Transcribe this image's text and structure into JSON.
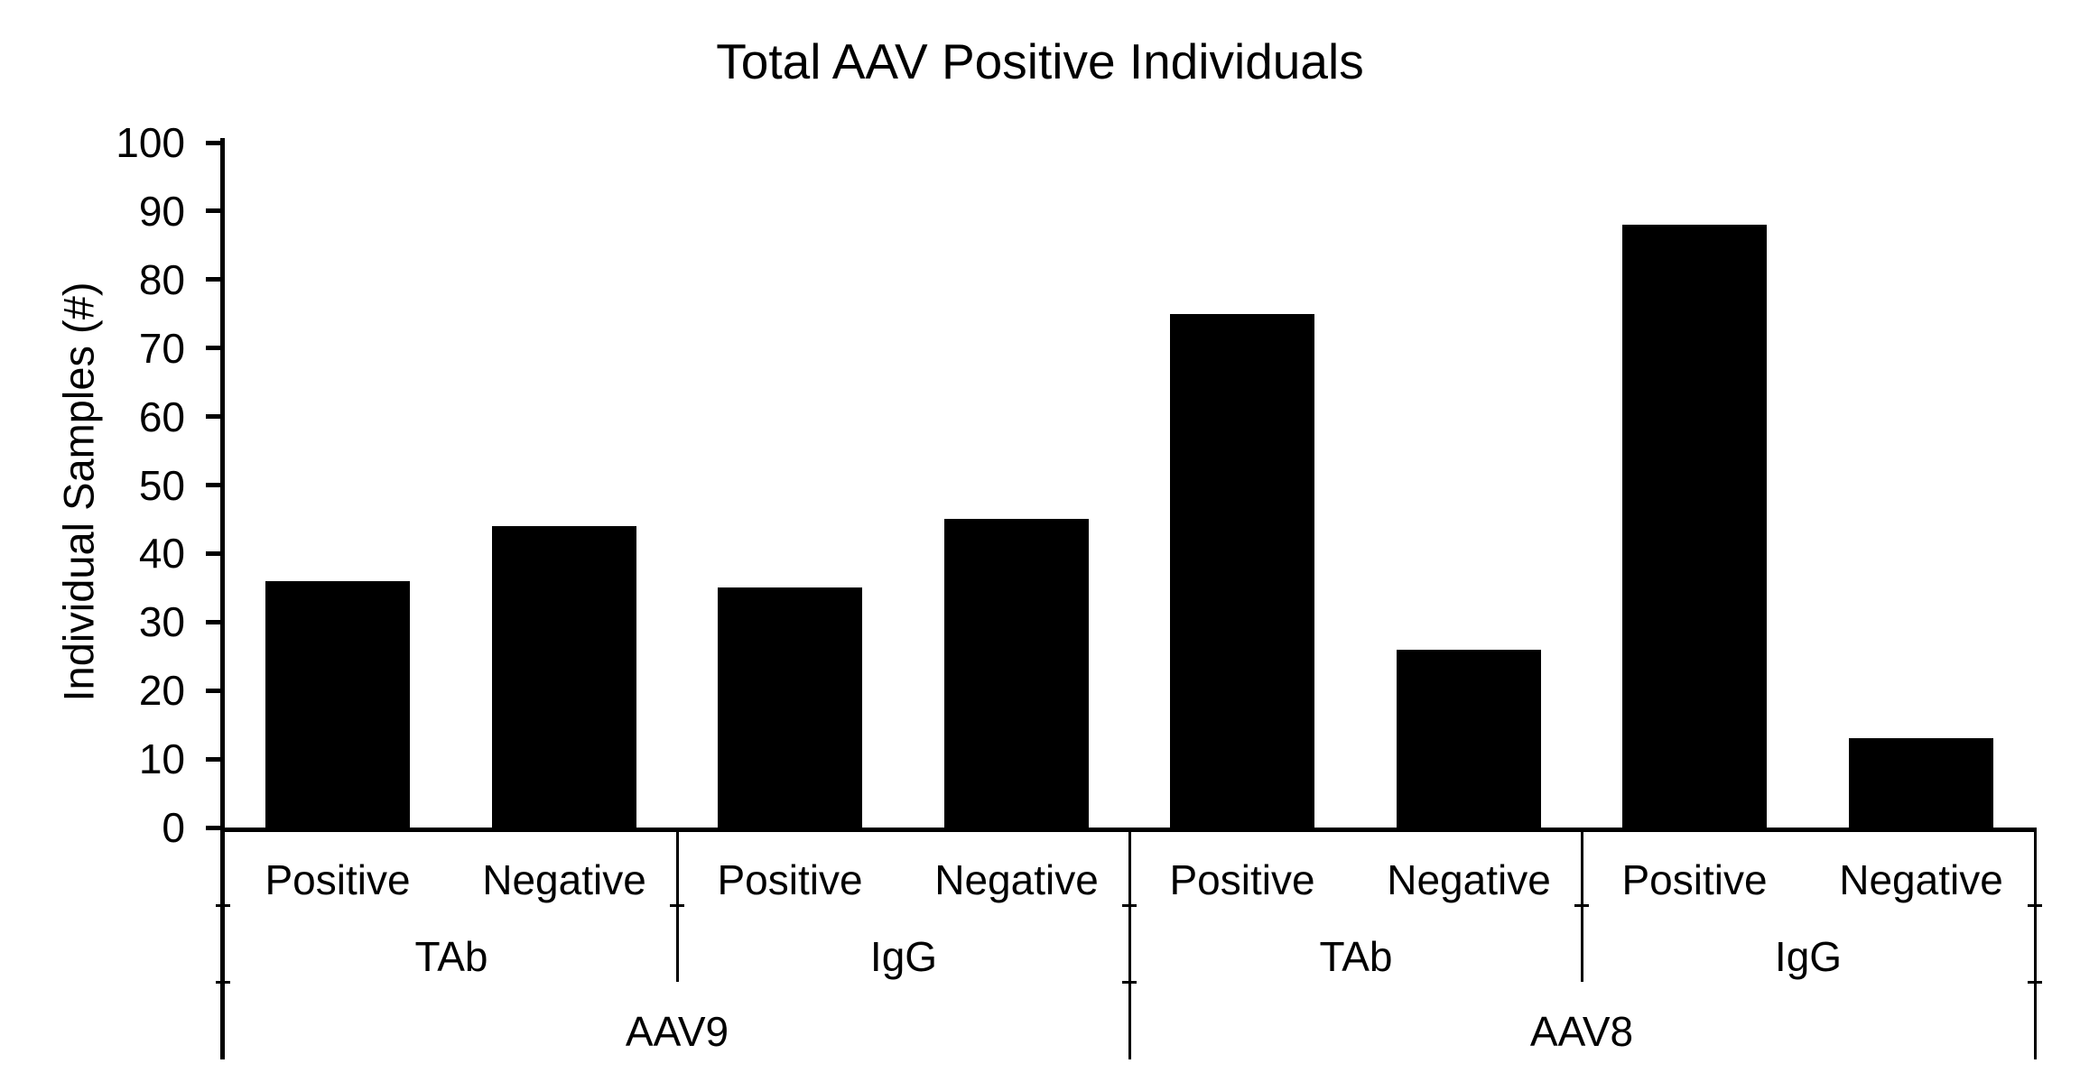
{
  "title": "Total AAV Positive Individuals",
  "chart_data": {
    "type": "bar",
    "title": "Total AAV Positive Individuals",
    "xlabel": "",
    "ylabel": "Individual Samples (#)",
    "ylim": [
      0,
      100
    ],
    "ytick_step": 10,
    "ytick_labels": [
      "0",
      "10",
      "20",
      "30",
      "40",
      "50",
      "60",
      "70",
      "80",
      "90",
      "100"
    ],
    "grid": false,
    "legend_position": "none",
    "bar_color": "#000000",
    "axis_color": "#000000",
    "background_color": "#ffffff",
    "categories": [
      "AAV9 TAb Positive",
      "AAV9 TAb Negative",
      "AAV9 IgG Positive",
      "AAV9 IgG Negative",
      "AAV8 TAb Positive",
      "AAV8 TAb Negative",
      "AAV8 IgG Positive",
      "AAV8 IgG Negative"
    ],
    "values": [
      36,
      44,
      35,
      45,
      75,
      26,
      88,
      13
    ],
    "groups": [
      {
        "label": "AAV9",
        "subgroups": [
          {
            "label": "TAb",
            "bars": [
              {
                "label": "Positive",
                "value": 36
              },
              {
                "label": "Negative",
                "value": 44
              }
            ]
          },
          {
            "label": "IgG",
            "bars": [
              {
                "label": "Positive",
                "value": 35
              },
              {
                "label": "Negative",
                "value": 45
              }
            ]
          }
        ]
      },
      {
        "label": "AAV8",
        "subgroups": [
          {
            "label": "TAb",
            "bars": [
              {
                "label": "Positive",
                "value": 75
              },
              {
                "label": "Negative",
                "value": 26
              }
            ]
          },
          {
            "label": "IgG",
            "bars": [
              {
                "label": "Positive",
                "value": 88
              },
              {
                "label": "Negative",
                "value": 13
              }
            ]
          }
        ]
      }
    ]
  }
}
